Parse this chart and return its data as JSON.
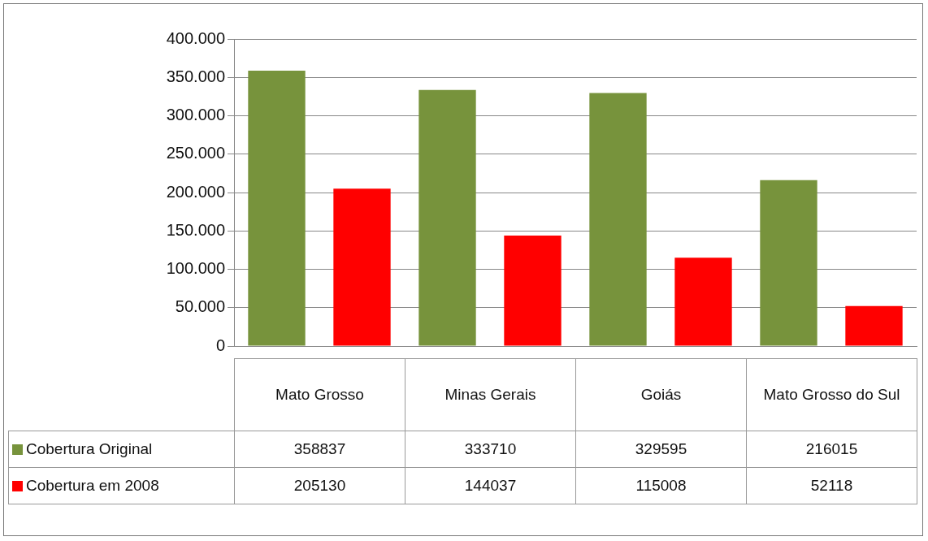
{
  "chart_data": {
    "type": "bar",
    "categories": [
      "Mato Grosso",
      "Minas Gerais",
      "Goiás",
      "Mato Grosso do Sul"
    ],
    "series": [
      {
        "name": "Cobertura Original",
        "color": "#77933c",
        "values": [
          358837,
          333710,
          329595,
          216015
        ]
      },
      {
        "name": "Cobertura em 2008",
        "color": "#ff0000",
        "values": [
          205130,
          144037,
          115008,
          52118
        ]
      }
    ],
    "ylim": [
      0,
      400000
    ],
    "yticks": [
      {
        "value": 0,
        "label": "0"
      },
      {
        "value": 50000,
        "label": "50.000"
      },
      {
        "value": 100000,
        "label": "100.000"
      },
      {
        "value": 150000,
        "label": "150.000"
      },
      {
        "value": 200000,
        "label": "200.000"
      },
      {
        "value": 250000,
        "label": "250.000"
      },
      {
        "value": 300000,
        "label": "300.000"
      },
      {
        "value": 350000,
        "label": "350.000"
      },
      {
        "value": 400000,
        "label": "400.000"
      }
    ],
    "grid": "y",
    "legend": "bottom left",
    "data_labels": true
  }
}
